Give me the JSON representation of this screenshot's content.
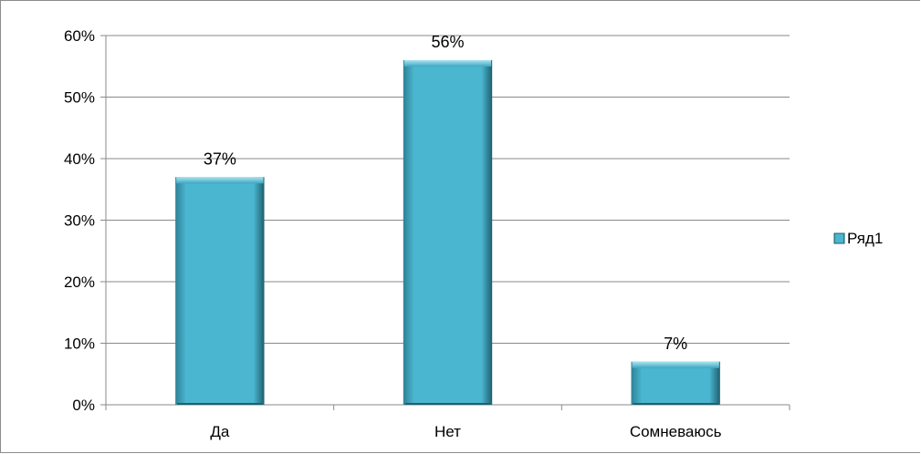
{
  "chart_data": {
    "type": "bar",
    "categories": [
      "Да",
      "Нет",
      "Сомневаюсь"
    ],
    "series": [
      {
        "name": "Ряд1",
        "values": [
          37,
          56,
          7
        ],
        "color": "#4ab6cf"
      }
    ],
    "data_labels": [
      "37%",
      "56%",
      "7%"
    ],
    "y_ticks": [
      "0%",
      "10%",
      "20%",
      "30%",
      "40%",
      "50%",
      "60%"
    ],
    "ylim": [
      0,
      60
    ],
    "grid": true,
    "legend_position": "right",
    "title": "",
    "xlabel": "",
    "ylabel": ""
  }
}
